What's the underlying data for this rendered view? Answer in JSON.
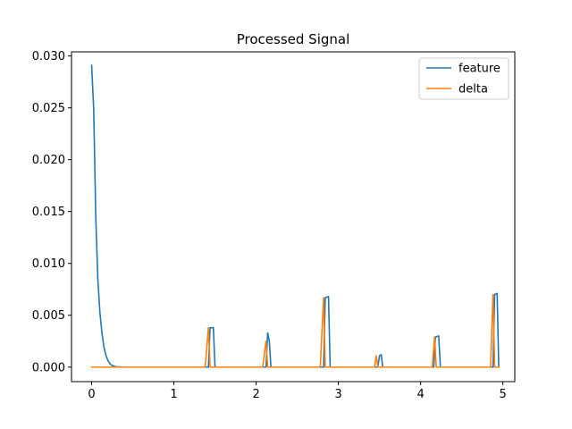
{
  "chart_data": {
    "type": "line",
    "title": "Processed Signal",
    "xlabel": "",
    "ylabel": "",
    "xlim": [
      -0.245,
      5.145
    ],
    "ylim": [
      -0.0014,
      0.0304
    ],
    "xticks": [
      0,
      1,
      2,
      3,
      4,
      5
    ],
    "xtick_labels": [
      "0",
      "1",
      "2",
      "3",
      "4",
      "5"
    ],
    "yticks": [
      0.0,
      0.005,
      0.01,
      0.015,
      0.02,
      0.025,
      0.03
    ],
    "ytick_labels": [
      "0.000",
      "0.005",
      "0.010",
      "0.015",
      "0.020",
      "0.025",
      "0.030"
    ],
    "grid": false,
    "legend_position": "top-right",
    "series": [
      {
        "name": "feature",
        "color": "#1f77b4",
        "points": [
          [
            0.0,
            0.0291
          ],
          [
            0.025,
            0.0248
          ],
          [
            0.05,
            0.0145
          ],
          [
            0.075,
            0.0085
          ],
          [
            0.1,
            0.0053
          ],
          [
            0.125,
            0.0033
          ],
          [
            0.15,
            0.0019
          ],
          [
            0.175,
            0.0011
          ],
          [
            0.2,
            0.0006
          ],
          [
            0.225,
            0.0003
          ],
          [
            0.25,
            0.00015
          ],
          [
            0.3,
            3e-05
          ],
          [
            0.4,
            0.0
          ],
          [
            1.4,
            0.0
          ],
          [
            1.42,
            0.0
          ],
          [
            1.44,
            0.0038
          ],
          [
            1.48,
            0.0038
          ],
          [
            1.5,
            0.0
          ],
          [
            2.1,
            0.0
          ],
          [
            2.12,
            0.0
          ],
          [
            2.14,
            0.0033
          ],
          [
            2.16,
            0.0025
          ],
          [
            2.18,
            0.0
          ],
          [
            2.82,
            0.0
          ],
          [
            2.84,
            0.0067
          ],
          [
            2.88,
            0.0068
          ],
          [
            2.9,
            0.0
          ],
          [
            3.48,
            0.0
          ],
          [
            3.5,
            0.0011
          ],
          [
            3.52,
            0.0012
          ],
          [
            3.54,
            0.0
          ],
          [
            4.16,
            0.0
          ],
          [
            4.18,
            0.0029
          ],
          [
            4.22,
            0.003
          ],
          [
            4.24,
            0.0
          ],
          [
            4.88,
            0.0
          ],
          [
            4.9,
            0.007
          ],
          [
            4.93,
            0.0071
          ],
          [
            4.95,
            0.0
          ]
        ]
      },
      {
        "name": "delta",
        "color": "#ff7f0e",
        "points": [
          [
            0.0,
            0.0
          ],
          [
            1.38,
            0.0
          ],
          [
            1.42,
            0.0038
          ],
          [
            1.44,
            0.0
          ],
          [
            2.08,
            0.0
          ],
          [
            2.12,
            0.0025
          ],
          [
            2.14,
            0.0
          ],
          [
            2.78,
            0.0
          ],
          [
            2.82,
            0.0067
          ],
          [
            2.84,
            0.0
          ],
          [
            3.44,
            0.0
          ],
          [
            3.46,
            0.0011
          ],
          [
            3.48,
            0.0
          ],
          [
            4.14,
            0.0
          ],
          [
            4.17,
            0.0029
          ],
          [
            4.19,
            0.0
          ],
          [
            4.85,
            0.0
          ],
          [
            4.88,
            0.007
          ],
          [
            4.9,
            0.0
          ],
          [
            4.95,
            0.0
          ]
        ]
      }
    ]
  }
}
